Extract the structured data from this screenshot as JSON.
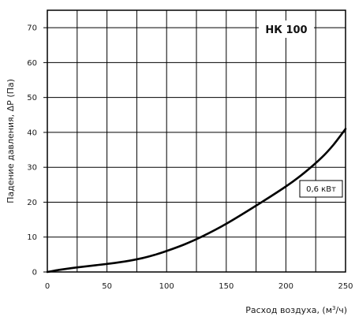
{
  "chart_data": {
    "type": "line",
    "title": "",
    "model_label": "НК  100",
    "xlabel_main": "Расход воздуха, (м",
    "xlabel_sup": "3",
    "xlabel_end": "/ч)",
    "ylabel": "Падение давления, ΔР (Па)",
    "xlim": [
      0,
      250
    ],
    "ylim": [
      0,
      75
    ],
    "x_ticks": [
      0,
      50,
      100,
      150,
      200,
      250
    ],
    "y_ticks": [
      0,
      10,
      20,
      30,
      40,
      50,
      60,
      70
    ],
    "grid": true,
    "colors": {
      "line": "#000000",
      "grid": "#000000",
      "frame": "#000000"
    },
    "series": [
      {
        "name": "0,6 кВт",
        "x": [
          0,
          10,
          25,
          40,
          50,
          65,
          80,
          90,
          100,
          115,
          130,
          150,
          175,
          200,
          215,
          230,
          240,
          250
        ],
        "y": [
          0,
          0.6,
          1.3,
          1.9,
          2.3,
          3.0,
          4.0,
          4.9,
          6.0,
          7.9,
          10.2,
          13.8,
          19.0,
          24.5,
          28.3,
          32.8,
          36.5,
          41.0
        ]
      }
    ]
  }
}
